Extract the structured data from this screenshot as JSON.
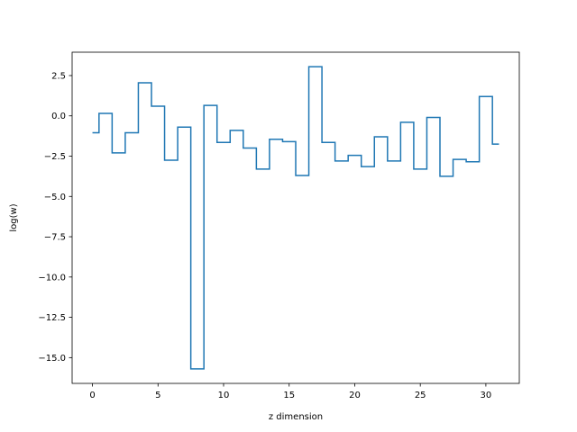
{
  "chart_data": {
    "type": "line",
    "drawstyle": "steps-mid",
    "title": "",
    "xlabel": "z dimension",
    "ylabel": "log(w)",
    "xlim": [
      -1.55,
      32.55
    ],
    "ylim": [
      -16.6,
      3.95
    ],
    "grid": false,
    "legend": "none",
    "x": [
      0,
      1,
      2,
      3,
      4,
      5,
      6,
      7,
      8,
      9,
      10,
      11,
      12,
      13,
      14,
      15,
      16,
      17,
      18,
      19,
      20,
      21,
      22,
      23,
      24,
      25,
      26,
      27,
      28,
      29,
      30,
      31
    ],
    "series": [
      {
        "values": [
          -1.05,
          0.15,
          -2.3,
          -1.05,
          2.05,
          0.6,
          -2.75,
          -0.7,
          -15.7,
          0.65,
          -1.65,
          -0.9,
          -2.0,
          -3.3,
          -1.45,
          -1.6,
          -3.7,
          3.05,
          -1.65,
          -2.8,
          -2.45,
          -3.15,
          -1.3,
          -2.8,
          -0.4,
          -3.3,
          -0.1,
          -3.75,
          -2.7,
          -2.85,
          1.2,
          -1.75
        ],
        "color": "#1f77b4"
      }
    ],
    "xticks": [
      0,
      5,
      10,
      15,
      20,
      25,
      30
    ],
    "xtick_labels": [
      "0",
      "5",
      "10",
      "15",
      "20",
      "25",
      "30"
    ],
    "yticks": [
      2.5,
      0.0,
      -2.5,
      -5.0,
      -7.5,
      -10.0,
      -12.5,
      -15.0
    ],
    "ytick_labels": [
      "2.5",
      "0.0",
      "−2.5",
      "−5.0",
      "−7.5",
      "−10.0",
      "−12.5",
      "−15.0"
    ]
  }
}
